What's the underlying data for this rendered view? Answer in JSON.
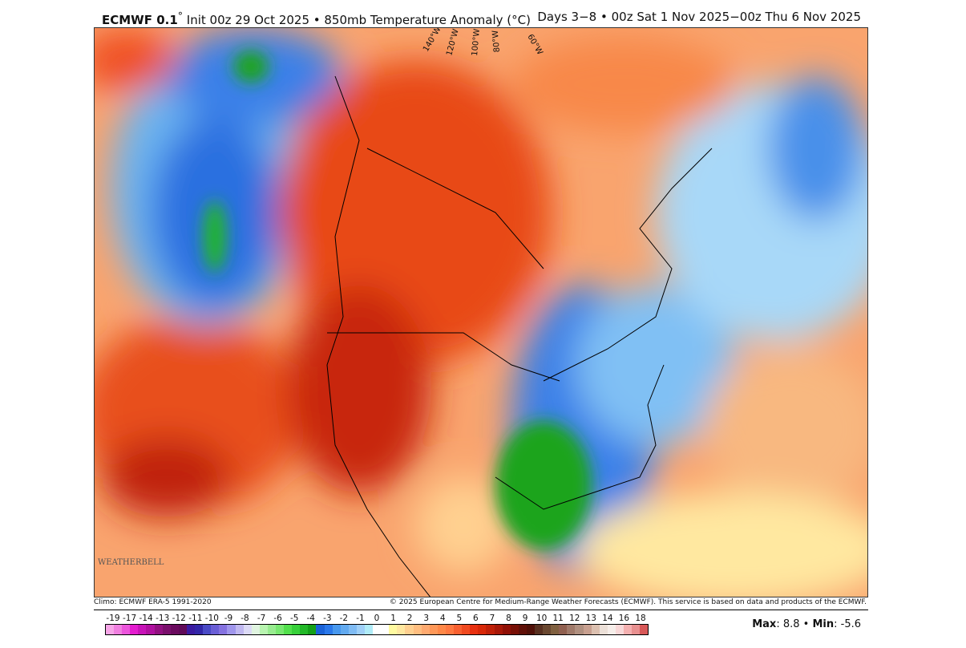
{
  "header": {
    "model": "ECMWF 0.1",
    "degree_mark": "°",
    "init": " Init 00z 29 Oct 2025 • 850mb Temperature Anomaly (°C)",
    "valid": "Days 3−8 • 00z Sat 1 Nov 2025−00z Thu 6 Nov 2025"
  },
  "map": {
    "meridian_labels": [
      "140°W",
      "120°W",
      "100°W",
      "80°W",
      "60°W"
    ],
    "logo": "WEATHERBELL"
  },
  "footer": {
    "climo": "Climo: ECMWF ERA-5 1991-2020",
    "copyright": "© 2025 European Centre for Medium-Range Weather Forecasts (ECMWF). This service is based on data and products of the ECMWF.",
    "max_label": "Max",
    "max_value": "8.8",
    "min_label": "Min",
    "min_value": "-5.6"
  },
  "colorbar": {
    "labels": [
      "-19",
      "-17",
      "-14",
      "-13",
      "-12",
      "-11",
      "-10",
      "-9",
      "-8",
      "-7",
      "-6",
      "-5",
      "-4",
      "-3",
      "-2",
      "-1",
      "0",
      "1",
      "2",
      "3",
      "4",
      "5",
      "6",
      "7",
      "8",
      "9",
      "10",
      "11",
      "12",
      "13",
      "14",
      "16",
      "18"
    ],
    "colors": [
      "#f7a6e8",
      "#f07fe0",
      "#ec55dc",
      "#e41ccf",
      "#c813b8",
      "#b0109f",
      "#921080",
      "#7a0f6c",
      "#6a0a5e",
      "#600a58",
      "#3a1aa0",
      "#3226a8",
      "#4a4ac6",
      "#6a5ed6",
      "#8572e0",
      "#a096ec",
      "#c0b8f0",
      "#dcdaf6",
      "#e0f4e0",
      "#b8f4b0",
      "#98ec90",
      "#78e870",
      "#52e04c",
      "#38d03a",
      "#22b828",
      "#14a018",
      "#1a62d8",
      "#2a78ea",
      "#4898ee",
      "#62aaf0",
      "#80bcf4",
      "#a0d0f8",
      "#b0ecf8",
      "#ffffff",
      "#ffffff",
      "#fffaa0",
      "#ffe8a0",
      "#ffd090",
      "#ffbe80",
      "#ffaa70",
      "#ff9858",
      "#ff8848",
      "#ff7840",
      "#f86030",
      "#f04a20",
      "#e83010",
      "#d82808",
      "#c02008",
      "#a81808",
      "#901006",
      "#781006",
      "#601008",
      "#501008",
      "#583020",
      "#6a4830",
      "#806040",
      "#906050",
      "#a07a6a",
      "#b09080",
      "#c8a090",
      "#dcc0b0",
      "#ece0d8",
      "#f6eeea",
      "#f8d8d8",
      "#f4b0b0",
      "#e89090",
      "#d85858"
    ]
  }
}
